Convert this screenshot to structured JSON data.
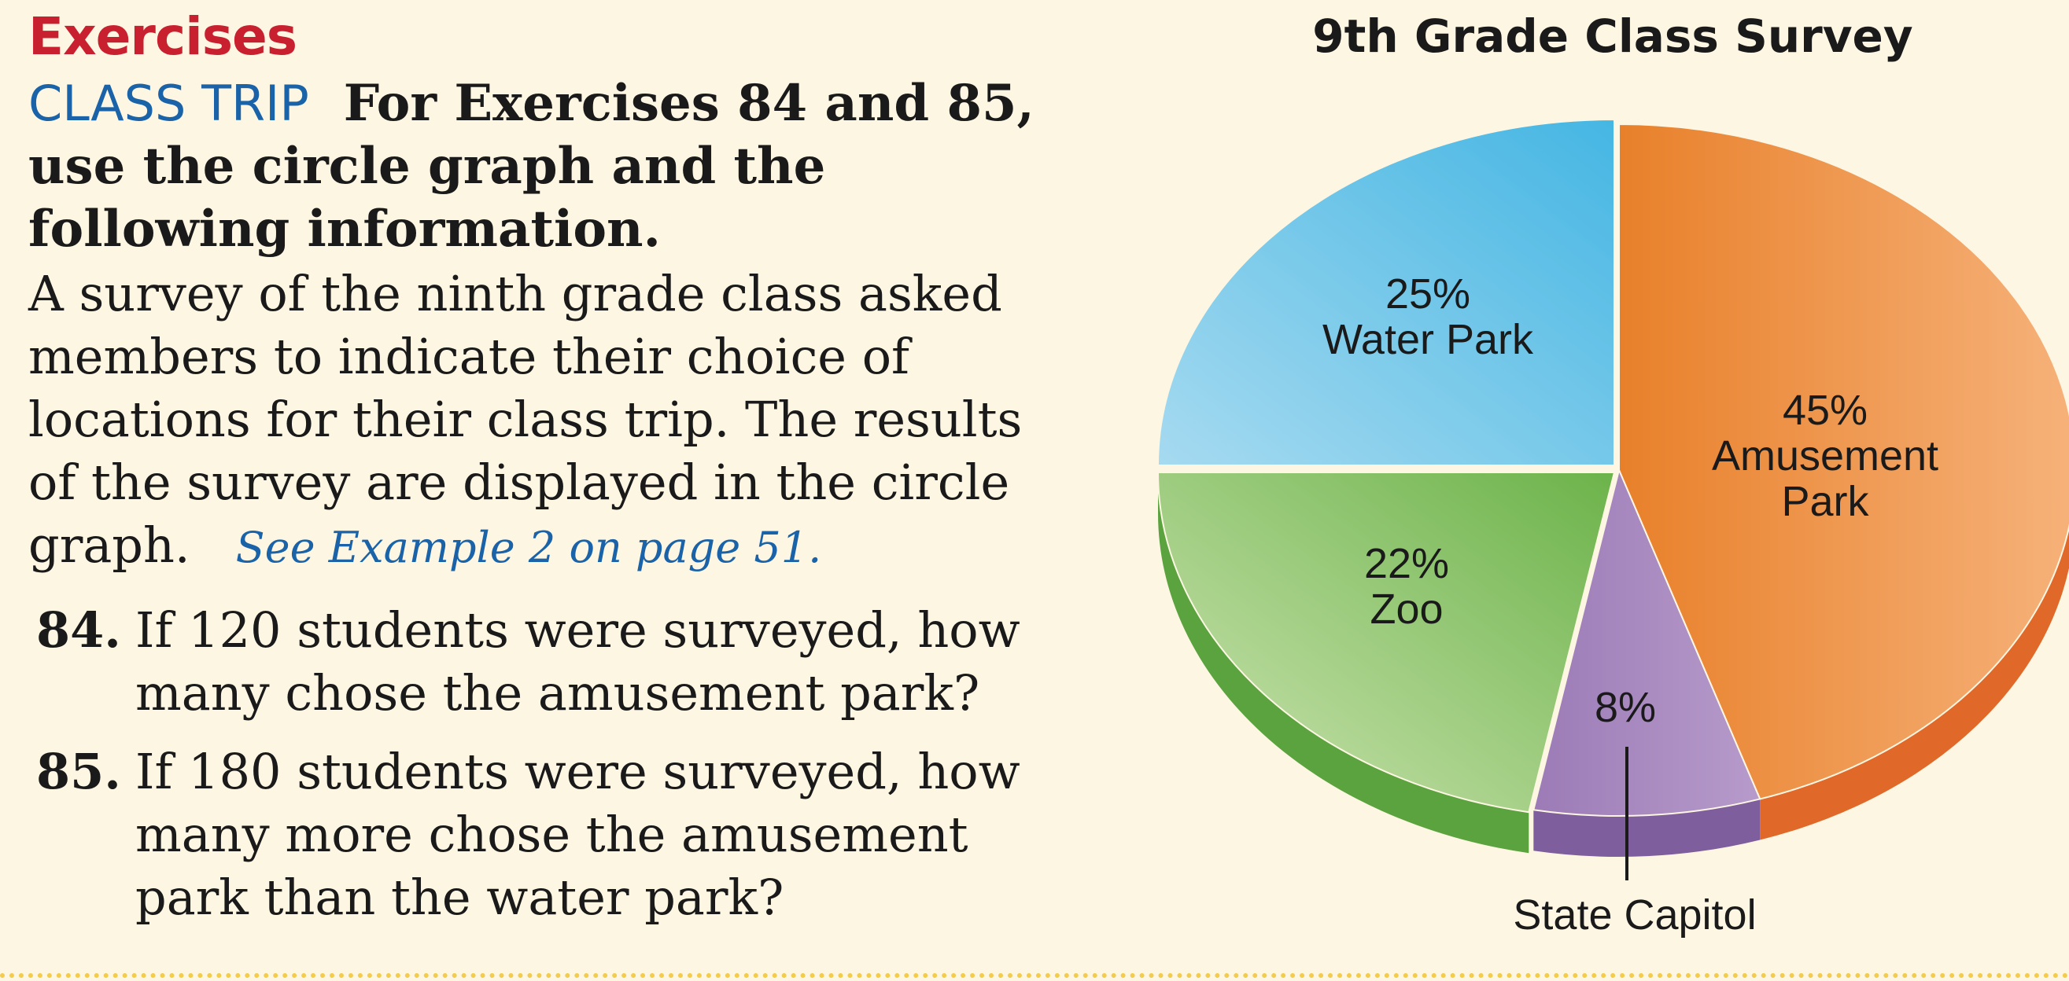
{
  "section_title": "Exercises",
  "intro": {
    "topic": "CLASS TRIP",
    "text": "For Exercises 84 and 85, use the circle graph and the following information."
  },
  "paragraph": {
    "text": "A survey of the ninth grade class asked members to indicate their choice of locations for their class trip. The results of the survey are displayed in the circle graph.",
    "reference": "See Example 2 on page 51."
  },
  "exercises": [
    {
      "number": "84.",
      "text": "If 120 students were surveyed, how many chose the amusement park?"
    },
    {
      "number": "85.",
      "text": "If 180 students were surveyed, how many more chose the amusement park than the water park?"
    }
  ],
  "chart_data": {
    "type": "pie",
    "title": "9th Grade Class Survey",
    "slices": [
      {
        "label": "Amusement Park",
        "value": 45,
        "value_label": "45%",
        "label_lines": [
          "Amusement",
          "Park"
        ],
        "color": "#ec8a35"
      },
      {
        "label": "State Capitol",
        "value": 8,
        "value_label": "8%",
        "label_lines": [
          "State Capitol"
        ],
        "color": "#a889be"
      },
      {
        "label": "Zoo",
        "value": 22,
        "value_label": "22%",
        "label_lines": [
          "Zoo"
        ],
        "color": "#8cc267"
      },
      {
        "label": "Water Park",
        "value": 25,
        "value_label": "25%",
        "label_lines": [
          "Water Park"
        ],
        "color": "#6ec3e6"
      }
    ]
  }
}
